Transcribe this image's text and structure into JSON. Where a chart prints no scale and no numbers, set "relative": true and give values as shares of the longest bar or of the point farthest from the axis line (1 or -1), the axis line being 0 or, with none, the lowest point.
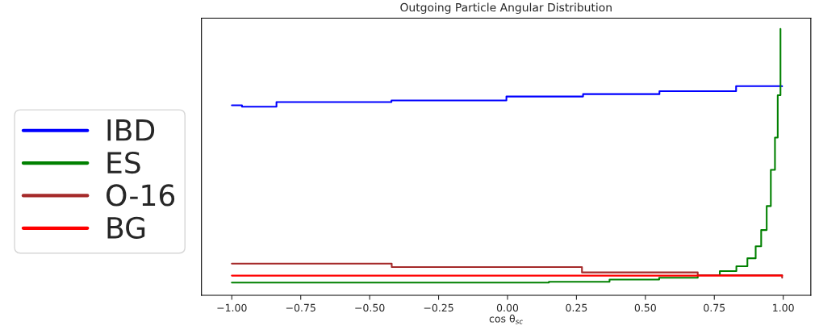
{
  "chart_data": {
    "type": "step",
    "title": "Outgoing Particle Angular Distribution",
    "xlabel": "cos θ$_{sc}$",
    "relative": true,
    "xlim": [
      -1.11,
      1.1
    ],
    "xticks": [
      {
        "value": -1,
        "label": "−1.00"
      },
      {
        "value": -0.75,
        "label": "−0.75"
      },
      {
        "value": -0.5,
        "label": "−0.50"
      },
      {
        "value": -0.25,
        "label": "−0.25"
      },
      {
        "value": 0,
        "label": "0.00"
      },
      {
        "value": 0.25,
        "label": "0.25"
      },
      {
        "value": 0.5,
        "label": "0.50"
      },
      {
        "value": 0.75,
        "label": "0.75"
      },
      {
        "value": 1,
        "label": "1.00"
      }
    ],
    "legend": "left",
    "grid": false,
    "tick_labels": "x",
    "series": [
      {
        "name": "IBD",
        "color": "#0000ff",
        "x": [
          -1,
          -0.963,
          -0.838,
          -0.421,
          -0.004,
          0.274,
          0.551,
          0.829,
          0.996
        ],
        "values": [
          0.713,
          0.708,
          0.725,
          0.731,
          0.746,
          0.755,
          0.766,
          0.785,
          0.784
        ]
      },
      {
        "name": "ES",
        "color": "#008000",
        "x": [
          -1,
          0.15,
          0.37,
          0.55,
          0.69,
          0.77,
          0.83,
          0.87,
          0.9,
          0.92,
          0.94,
          0.955,
          0.97,
          0.98,
          0.99
        ],
        "values": [
          0.048,
          0.051,
          0.059,
          0.066,
          0.076,
          0.091,
          0.109,
          0.139,
          0.184,
          0.245,
          0.335,
          0.471,
          0.592,
          0.751,
          1
        ]
      },
      {
        "name": "O-16",
        "color": "#a52a2a",
        "x": [
          -1,
          -0.42,
          0.27,
          0.69,
          0.996
        ],
        "values": [
          0.119,
          0.106,
          0.086,
          0.076,
          0.066
        ]
      },
      {
        "name": "BG",
        "color": "#ff0000",
        "x": [
          -1,
          0.996
        ],
        "values": [
          0.074,
          0.074
        ]
      }
    ]
  }
}
